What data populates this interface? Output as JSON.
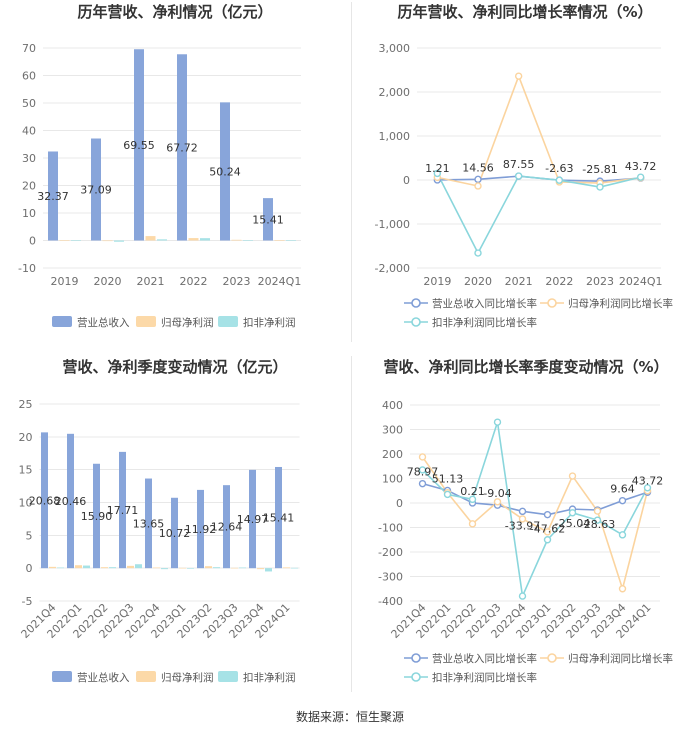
{
  "footer": {
    "source": "数据来源：恒生聚源"
  },
  "chart_data": [
    {
      "type": "bar",
      "title": "历年营收、净利情况（亿元）",
      "categories": [
        "2019",
        "2020",
        "2021",
        "2022",
        "2023",
        "2024Q1"
      ],
      "series": [
        {
          "name": "营业总收入",
          "color": "#88a5da",
          "values": [
            32.37,
            37.09,
            69.55,
            67.72,
            50.24,
            15.41
          ],
          "data_labels": [
            "32.37",
            "37.09",
            "69.55",
            "67.72",
            "50.24",
            "15.41"
          ]
        },
        {
          "name": "归母净利润",
          "color": "#fcd9a8",
          "values": [
            0.18,
            -0.07,
            1.6,
            0.88,
            0.26,
            0.12
          ]
        },
        {
          "name": "扣非净利润",
          "color": "#a6e2e6",
          "values": [
            0.05,
            -0.45,
            0.42,
            0.85,
            0.15,
            0.08
          ]
        }
      ],
      "ylim": [
        -10,
        70
      ],
      "yticks": [
        -10,
        0,
        10,
        20,
        30,
        40,
        50,
        60,
        70
      ],
      "ytick_labels": [
        "-10",
        "0",
        "10",
        "20",
        "30",
        "40",
        "50",
        "60",
        "70"
      ],
      "grid": true,
      "legend": "bottom"
    },
    {
      "type": "line",
      "title": "历年营收、净利同比增长率情况（%）",
      "categories": [
        "2019",
        "2020",
        "2021",
        "2022",
        "2023",
        "2024Q1"
      ],
      "series": [
        {
          "name": "营业总收入同比增长率",
          "color": "#7f9dd6",
          "values": [
            1.21,
            14.56,
            87.55,
            -2.63,
            -25.81,
            43.72
          ],
          "data_labels": [
            "1.21",
            "14.56",
            "87.55",
            "-2.63",
            "-25.81",
            "43.72"
          ]
        },
        {
          "name": "归母净利润同比增长率",
          "color": "#fbd49f",
          "values": [
            60,
            -136,
            2360,
            -45,
            -70,
            50
          ]
        },
        {
          "name": "扣非净利润同比增长率",
          "color": "#8ad6dc",
          "values": [
            150,
            -1660,
            90,
            -5,
            -160,
            65
          ]
        }
      ],
      "ylim": [
        -2000,
        3000
      ],
      "yticks": [
        -2000,
        -1000,
        0,
        1000,
        2000,
        3000
      ],
      "ytick_labels": [
        "-2,000",
        "-1,000",
        "0",
        "1,000",
        "2,000",
        "3,000"
      ],
      "grid": true,
      "legend": "bottom"
    },
    {
      "type": "bar",
      "title": "营收、净利季度变动情况（亿元）",
      "categories": [
        "2021Q4",
        "2022Q1",
        "2022Q2",
        "2022Q3",
        "2022Q4",
        "2023Q1",
        "2023Q2",
        "2023Q3",
        "2023Q4",
        "2024Q1"
      ],
      "series": [
        {
          "name": "营业总收入",
          "color": "#88a5da",
          "values": [
            20.68,
            20.46,
            15.9,
            17.71,
            13.65,
            10.72,
            11.92,
            12.64,
            14.97,
            15.41
          ],
          "data_labels": [
            "20.68",
            "20.46",
            "15.90",
            "17.71",
            "13.65",
            "10.72",
            "11.92",
            "12.64",
            "14.97",
            "15.41"
          ]
        },
        {
          "name": "归母净利润",
          "color": "#fcd9a8",
          "values": [
            0.2,
            0.45,
            0.15,
            0.35,
            0.1,
            0.05,
            0.3,
            0.05,
            -0.15,
            0.12
          ]
        },
        {
          "name": "扣非净利润",
          "color": "#a6e2e6",
          "values": [
            0.1,
            0.4,
            0.15,
            0.6,
            -0.15,
            -0.05,
            0.15,
            0.1,
            -0.5,
            0.05
          ]
        }
      ],
      "ylim": [
        -5,
        25
      ],
      "yticks": [
        -5,
        0,
        5,
        10,
        15,
        20,
        25
      ],
      "ytick_labels": [
        "-5",
        "0",
        "5",
        "10",
        "15",
        "20",
        "25"
      ],
      "grid": true,
      "legend": "bottom"
    },
    {
      "type": "line",
      "title": "营收、净利同比增长率季度变动情况（%）",
      "categories": [
        "2021Q4",
        "2022Q1",
        "2022Q2",
        "2022Q3",
        "2022Q4",
        "2023Q1",
        "2023Q2",
        "2023Q3",
        "2023Q4",
        "2024Q1"
      ],
      "series": [
        {
          "name": "营业总收入同比增长率",
          "color": "#7f9dd6",
          "values": [
            78.97,
            51.13,
            0.21,
            -9.04,
            -33.97,
            -47.62,
            -25.04,
            -28.63,
            9.64,
            43.72
          ],
          "data_labels": [
            "78.97",
            "51.13",
            "0.21",
            "-9.04",
            "-33.97",
            "-47.62",
            "-25.04",
            "-28.63",
            "9.64",
            "43.72"
          ]
        },
        {
          "name": "归母净利润同比增长率",
          "color": "#fbd49f",
          "values": [
            188,
            42,
            -85,
            5,
            -65,
            -118,
            110,
            -33,
            -350,
            50
          ]
        },
        {
          "name": "扣非净利润同比增长率",
          "color": "#8ad6dc",
          "values": [
            135,
            35,
            15,
            330,
            -380,
            -150,
            -40,
            -70,
            -130,
            62
          ]
        }
      ],
      "ylim": [
        -400,
        400
      ],
      "yticks": [
        -400,
        -300,
        -200,
        -100,
        0,
        100,
        200,
        300,
        400
      ],
      "ytick_labels": [
        "-400",
        "-300",
        "-200",
        "-100",
        "0",
        "100",
        "200",
        "300",
        "400"
      ],
      "grid": true,
      "legend": "bottom"
    }
  ]
}
